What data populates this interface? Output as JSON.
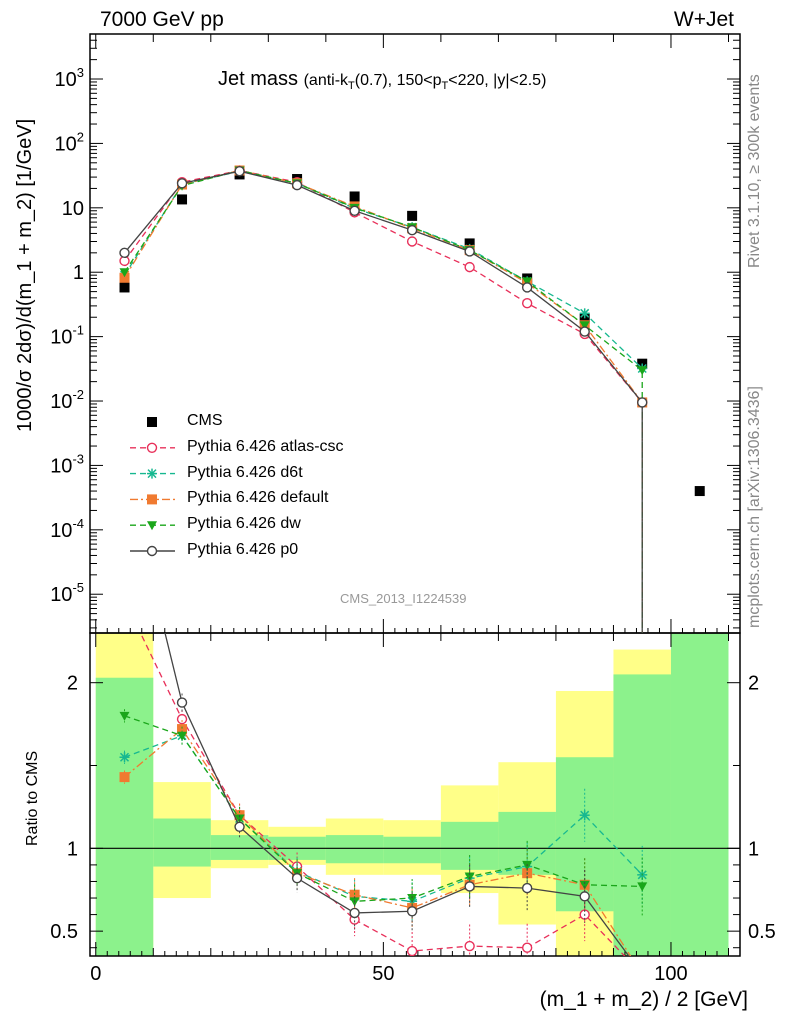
{
  "header": {
    "left": "7000 GeV pp",
    "right": "W+Jet",
    "title_main": "Jet mass",
    "title_detail_a": "(anti-k",
    "title_detail_sub1": "T",
    "title_detail_b": "(0.7), 150<p",
    "title_detail_sub2": "T",
    "title_detail_c": "<220, |y|<2.5)"
  },
  "side_labels": {
    "rivet": "Rivet 3.1.10, ≥ 300k events",
    "mcplots": "mcplots.cern.ch [arXiv:1306.3436]"
  },
  "watermark": "CMS_2013_I1224539",
  "chart_data": [
    {
      "type": "scatter",
      "panel": "main",
      "ylabel": "1000/σ 2dσ)/d(m_1 + m_2) [1/GeV]",
      "yscale": "log",
      "ylim": [
        2.5e-06,
        5000
      ],
      "xlim": [
        -1,
        112
      ],
      "yticks": [
        {
          "label": "10",
          "sup": "3"
        },
        {
          "label": "10",
          "sup": "2"
        },
        {
          "label": "10",
          "sup": ""
        },
        {
          "label": "1",
          "sup": ""
        },
        {
          "label": "10",
          "sup": "-1"
        },
        {
          "label": "10",
          "sup": "-2"
        },
        {
          "label": "10",
          "sup": "-3"
        },
        {
          "label": "10",
          "sup": "-4"
        },
        {
          "label": "10",
          "sup": "-5"
        }
      ],
      "x": [
        5,
        15,
        25,
        35,
        45,
        55,
        65,
        75,
        85,
        95,
        105
      ],
      "series": [
        {
          "name": "CMS",
          "color": "#000000",
          "marker": "square",
          "values": [
            0.58,
            13.5,
            33,
            28,
            15,
            7.5,
            2.8,
            0.8,
            0.19,
            0.038,
            0.0004
          ]
        },
        {
          "name": "Pythia 6.426 atlas-csc",
          "color": "#e8305a",
          "marker": "open-circle",
          "dash": "dashed",
          "values": [
            1.5,
            25,
            38,
            25,
            8.5,
            3.0,
            1.2,
            0.33,
            0.11,
            0.0095
          ]
        },
        {
          "name": "Pythia 6.426 d6t",
          "color": "#17b890",
          "marker": "star",
          "dash": "dashed",
          "values": [
            0.9,
            23,
            37,
            24,
            9.8,
            5.0,
            2.3,
            0.72,
            0.23,
            0.032
          ]
        },
        {
          "name": "Pythia 6.426 default",
          "color": "#f07a30",
          "marker": "square",
          "dash": "dashdot",
          "values": [
            0.82,
            23,
            38,
            24,
            10.5,
            4.8,
            2.2,
            0.68,
            0.15,
            0.0095
          ]
        },
        {
          "name": "Pythia 6.426 dw",
          "color": "#1aa61a",
          "marker": "triangle-down",
          "dash": "dashed",
          "values": [
            1.0,
            22,
            38,
            24,
            10.0,
            5.0,
            2.2,
            0.72,
            0.15,
            0.03
          ]
        },
        {
          "name": "Pythia 6.426 p0",
          "color": "#444444",
          "marker": "open-circle",
          "dash": "solid",
          "values": [
            2.0,
            24,
            37,
            22.5,
            9.0,
            4.5,
            2.1,
            0.58,
            0.12,
            0.0095
          ]
        }
      ]
    },
    {
      "type": "line",
      "panel": "ratio",
      "ylabel": "Ratio to CMS",
      "xlabel": "(m_1 + m_2) / 2 [GeV]",
      "ylim": [
        0.35,
        2.3
      ],
      "yticks": [
        0.5,
        1,
        2
      ],
      "xticks": [
        0,
        50,
        100
      ],
      "bins": [
        0,
        10,
        20,
        30,
        40,
        50,
        60,
        70,
        80,
        90,
        100,
        110
      ],
      "band_stat": [
        [
          0.01,
          2.03
        ],
        [
          0.89,
          1.18
        ],
        [
          0.93,
          1.08
        ],
        [
          0.93,
          1.07
        ],
        [
          0.91,
          1.08
        ],
        [
          0.91,
          1.07
        ],
        [
          0.87,
          1.16
        ],
        [
          0.84,
          1.22
        ],
        [
          0.62,
          1.55
        ],
        [
          0.3,
          2.05
        ],
        [
          0.3,
          2.3
        ]
      ],
      "band_tot": [
        [
          0.01,
          2.3
        ],
        [
          0.7,
          1.4
        ],
        [
          0.88,
          1.17
        ],
        [
          0.9,
          1.13
        ],
        [
          0.84,
          1.18
        ],
        [
          0.84,
          1.17
        ],
        [
          0.73,
          1.38
        ],
        [
          0.54,
          1.52
        ],
        [
          0.35,
          1.95
        ],
        [
          0.3,
          2.2
        ],
        [
          0.3,
          2.3
        ]
      ],
      "x": [
        5,
        15,
        25,
        35,
        45,
        55,
        65,
        75,
        85,
        95
      ],
      "series": [
        {
          "name": "Pythia 6.426 atlas-csc",
          "values": [
            2.5,
            1.78,
            1.2,
            0.89,
            0.57,
            0.38,
            0.41,
            0.4,
            0.6,
            0.24
          ]
        },
        {
          "name": "Pythia 6.426 d6t",
          "values": [
            1.55,
            1.68,
            1.18,
            0.86,
            0.71,
            0.68,
            0.82,
            0.89,
            1.2,
            0.84
          ]
        },
        {
          "name": "Pythia 6.426 default",
          "values": [
            1.43,
            1.72,
            1.2,
            0.85,
            0.72,
            0.64,
            0.78,
            0.85,
            0.78,
            0.24
          ]
        },
        {
          "name": "Pythia 6.426 dw",
          "values": [
            1.8,
            1.68,
            1.18,
            0.85,
            0.68,
            0.7,
            0.83,
            0.9,
            0.78,
            0.77
          ]
        },
        {
          "name": "Pythia 6.426 p0",
          "values": [
            3.3,
            1.88,
            1.13,
            0.82,
            0.61,
            0.62,
            0.77,
            0.76,
            0.71,
            0.24
          ]
        }
      ]
    }
  ]
}
